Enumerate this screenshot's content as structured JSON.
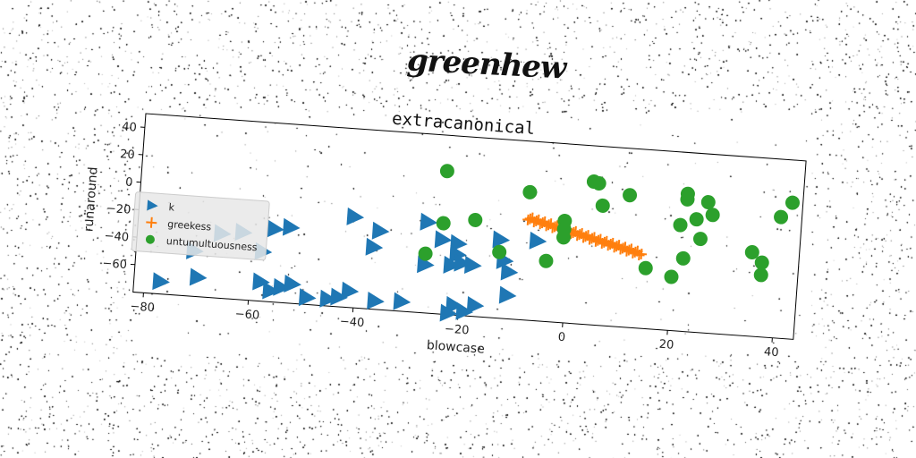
{
  "brand": "greenhew",
  "chart_data": {
    "type": "scatter",
    "title": "extracanonical",
    "xlabel": "blowcase",
    "ylabel": "runaround",
    "xlim": [
      -82,
      44
    ],
    "ylim": [
      -80,
      50
    ],
    "xticks": [
      -80,
      -60,
      -40,
      -20,
      0,
      20,
      40
    ],
    "yticks": [
      40,
      20,
      0,
      -20,
      -40,
      -60
    ],
    "grid": false,
    "legend_position": "center-left",
    "series": [
      {
        "name": "k",
        "marker": "triangle-right",
        "color": "#1f77b4",
        "points": [
          [
            -77,
            -71
          ],
          [
            -70,
            -66
          ],
          [
            -71,
            -47
          ],
          [
            -58,
            -44
          ],
          [
            -66,
            -33
          ],
          [
            -62,
            -31
          ],
          [
            -56,
            -27
          ],
          [
            -53,
            -25
          ],
          [
            -58,
            -66
          ],
          [
            -54,
            -69
          ],
          [
            -56,
            -72
          ],
          [
            -52,
            -66
          ],
          [
            -49,
            -75
          ],
          [
            -45,
            -75
          ],
          [
            -43,
            -73
          ],
          [
            -41,
            -68
          ],
          [
            -36,
            -74
          ],
          [
            -31,
            -73
          ],
          [
            -41,
            -14
          ],
          [
            -36,
            -23
          ],
          [
            -37,
            -35
          ],
          [
            -27,
            -14
          ],
          [
            -27,
            -45
          ],
          [
            -24,
            -26
          ],
          [
            -21,
            -28
          ],
          [
            -21,
            -36
          ],
          [
            -22,
            -44
          ],
          [
            -20,
            -42
          ],
          [
            -18,
            -43
          ],
          [
            -13,
            -23
          ],
          [
            -12,
            -38
          ],
          [
            -11,
            -46
          ],
          [
            -11,
            -63
          ],
          [
            -6,
            -22
          ],
          [
            -21,
            -73
          ],
          [
            -19,
            -77
          ],
          [
            -17,
            -72
          ],
          [
            -22,
            -79
          ]
        ]
      },
      {
        "name": "greekess",
        "marker": "plus",
        "color": "#ff7f0e",
        "line_from": [
          -8,
          -6
        ],
        "line_to": [
          14,
          -26
        ],
        "count": 56
      },
      {
        "name": "untumultuousness",
        "marker": "circle",
        "color": "#2ca02c",
        "points": [
          [
            -24,
            24
          ],
          [
            -8,
            13
          ],
          [
            4,
            24
          ],
          [
            5,
            23
          ],
          [
            11,
            16
          ],
          [
            22,
            20
          ],
          [
            22,
            16
          ],
          [
            26,
            15
          ],
          [
            6,
            7
          ],
          [
            27,
            6
          ],
          [
            24,
            2
          ],
          [
            21,
            -3
          ],
          [
            42,
            19
          ],
          [
            40,
            8
          ],
          [
            -24,
            -14
          ],
          [
            -18,
            -10
          ],
          [
            -1,
            -6
          ],
          [
            -1,
            -12
          ],
          [
            -1,
            -18
          ],
          [
            -13,
            -32
          ],
          [
            -27,
            -37
          ],
          [
            -4,
            -36
          ],
          [
            15,
            -36
          ],
          [
            20,
            -41
          ],
          [
            22,
            -27
          ],
          [
            25,
            -12
          ],
          [
            35,
            -19
          ],
          [
            37,
            -26
          ],
          [
            37,
            -35
          ]
        ]
      }
    ]
  }
}
